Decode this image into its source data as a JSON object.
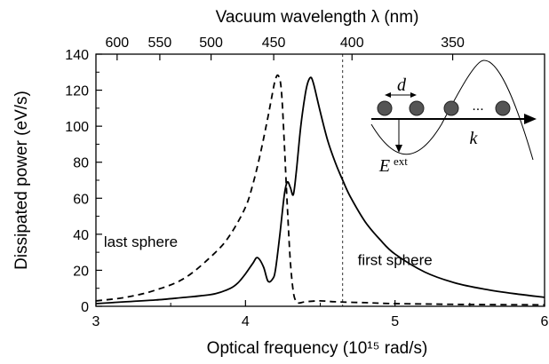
{
  "chart_data": {
    "type": "line",
    "xlabel": "Optical frequency (10¹⁵  rad/s)",
    "ylabel": "Dissipated power (eV/s)",
    "top_xlabel": "Vacuum wavelength λ (nm)",
    "xlim": [
      3,
      6
    ],
    "ylim": [
      0,
      140
    ],
    "x_ticks": [
      3,
      4,
      5,
      6
    ],
    "y_ticks": [
      0,
      20,
      40,
      60,
      80,
      100,
      120,
      140
    ],
    "top_ticks": [
      {
        "label": "600",
        "wavelength": 600
      },
      {
        "label": "550",
        "wavelength": 550
      },
      {
        "label": "500",
        "wavelength": 500
      },
      {
        "label": "450",
        "wavelength": 450
      },
      {
        "label": "400",
        "wavelength": 400
      },
      {
        "label": "350",
        "wavelength": 350
      }
    ],
    "vline_x": 4.65,
    "grid": false,
    "series": [
      {
        "name": "first sphere",
        "style": "solid",
        "x": [
          3.0,
          3.2,
          3.4,
          3.6,
          3.7,
          3.8,
          3.9,
          3.95,
          4.0,
          4.05,
          4.08,
          4.12,
          4.15,
          4.18,
          4.2,
          4.23,
          4.26,
          4.28,
          4.3,
          4.32,
          4.34,
          4.37,
          4.4,
          4.42,
          4.44,
          4.46,
          4.5,
          4.55,
          4.6,
          4.65,
          4.7,
          4.8,
          4.9,
          5.0,
          5.2,
          5.4,
          5.6,
          5.8,
          6.0
        ],
        "y": [
          1.5,
          2.5,
          3.5,
          5.0,
          5.8,
          7.0,
          10.0,
          13.0,
          18.0,
          24.0,
          27.0,
          22.0,
          14.0,
          15.0,
          20.0,
          40.0,
          62.0,
          69.0,
          66.0,
          62.0,
          75.0,
          100.0,
          118.0,
          125.0,
          127.0,
          122.0,
          108.0,
          92.0,
          80.0,
          70.0,
          61.0,
          47.0,
          37.0,
          29.0,
          19.0,
          13.0,
          9.5,
          7.0,
          5.0
        ]
      },
      {
        "name": "last sphere",
        "style": "dashed",
        "x": [
          3.0,
          3.2,
          3.4,
          3.6,
          3.8,
          3.9,
          4.0,
          4.05,
          4.1,
          4.15,
          4.18,
          4.2,
          4.22,
          4.24,
          4.26,
          4.28,
          4.3,
          4.32,
          4.34,
          4.36,
          4.4,
          4.5,
          4.6,
          4.8,
          5.0,
          5.5,
          6.0
        ],
        "y": [
          3.0,
          5.0,
          9.0,
          16.0,
          30.0,
          40.0,
          55.0,
          68.0,
          85.0,
          105.0,
          118.0,
          126.0,
          128.0,
          120.0,
          90.0,
          55.0,
          25.0,
          8.0,
          2.5,
          1.8,
          2.5,
          3.0,
          2.5,
          2.0,
          1.5,
          1.0,
          0.8
        ]
      }
    ],
    "annotations": [
      {
        "text": "last sphere",
        "x": 3.3,
        "y": 33
      },
      {
        "text": "first sphere",
        "x": 5.0,
        "y": 23
      }
    ],
    "inset": {
      "spacing_label": "d",
      "wavevector_label": "k",
      "field_label": "E",
      "field_superscript": "ext",
      "ellipsis": "..."
    }
  }
}
